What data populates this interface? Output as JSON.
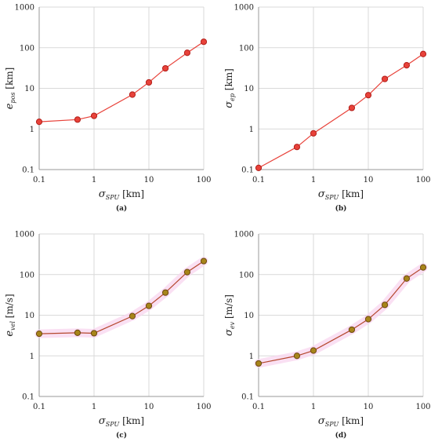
{
  "chart_data": [
    {
      "type": "line",
      "caption": "(a)",
      "xlabel": "σSPU [km]",
      "xlabel_main": "σ",
      "xlabel_sub": "SPU",
      "xlabel_unit": " [km]",
      "ylabel_main": "e",
      "ylabel_sub": "pos",
      "ylabel_unit": " [km]",
      "xscale": "log",
      "yscale": "log",
      "xlim": [
        0.1,
        100
      ],
      "ylim": [
        0.1,
        1000
      ],
      "x_ticks": [
        "0.1",
        "1",
        "10",
        "100"
      ],
      "y_ticks": [
        "0.1",
        "1",
        "10",
        "100",
        "1000"
      ],
      "grid": true,
      "x": [
        0.1,
        0.5,
        1,
        5,
        10,
        20,
        50,
        100
      ],
      "y": [
        1.5,
        1.7,
        2.1,
        7,
        14,
        31,
        75,
        140
      ],
      "line_color": "#e8423a",
      "marker_fill": "#e8423a",
      "marker_edge": "#b21f1a",
      "halo": false
    },
    {
      "type": "line",
      "caption": "(b)",
      "xlabel": "σSPU [km]",
      "xlabel_main": "σ",
      "xlabel_sub": "SPU",
      "xlabel_unit": " [km]",
      "ylabel_main": "σ",
      "ylabel_sub": "ep",
      "ylabel_unit": " [km]",
      "xscale": "log",
      "yscale": "log",
      "xlim": [
        0.1,
        100
      ],
      "ylim": [
        0.1,
        1000
      ],
      "x_ticks": [
        "0.1",
        "1",
        "10",
        "100"
      ],
      "y_ticks": [
        "0.1",
        "1",
        "10",
        "100",
        "1000"
      ],
      "grid": true,
      "x": [
        0.1,
        0.5,
        1,
        5,
        10,
        20,
        50,
        100
      ],
      "y": [
        0.11,
        0.36,
        0.78,
        3.3,
        6.8,
        17,
        37,
        70
      ],
      "line_color": "#e8423a",
      "marker_fill": "#e8423a",
      "marker_edge": "#b21f1a",
      "halo": false
    },
    {
      "type": "line",
      "caption": "(c)",
      "xlabel": "σSPU [km]",
      "xlabel_main": "σ",
      "xlabel_sub": "SPU",
      "xlabel_unit": " [km]",
      "ylabel_main": "e",
      "ylabel_sub": "vel",
      "ylabel_unit": " [m/s]",
      "xscale": "log",
      "yscale": "log",
      "xlim": [
        0.1,
        100
      ],
      "ylim": [
        0.1,
        1000
      ],
      "x_ticks": [
        "0.1",
        "1",
        "10",
        "100"
      ],
      "y_ticks": [
        "0.1",
        "1",
        "10",
        "100",
        "1000"
      ],
      "grid": true,
      "x": [
        0.1,
        0.5,
        1,
        5,
        10,
        20,
        50,
        100
      ],
      "y": [
        3.5,
        3.7,
        3.6,
        9.5,
        17,
        36,
        115,
        215
      ],
      "line_color": "#b5482e",
      "marker_fill": "#a8851a",
      "marker_edge": "#6b4a10",
      "halo": true,
      "halo_color": "#f9d6ef"
    },
    {
      "type": "line",
      "caption": "(d)",
      "xlabel": "σSPU [km]",
      "xlabel_main": "σ",
      "xlabel_sub": "SPU",
      "xlabel_unit": " [km]",
      "ylabel_main": "σ",
      "ylabel_sub": "ev",
      "ylabel_unit": " [m/s]",
      "xscale": "log",
      "yscale": "log",
      "xlim": [
        0.1,
        100
      ],
      "ylim": [
        0.1,
        1000
      ],
      "x_ticks": [
        "0.1",
        "1",
        "10",
        "100"
      ],
      "y_ticks": [
        "0.1",
        "1",
        "10",
        "100",
        "1000"
      ],
      "grid": true,
      "x": [
        0.1,
        0.5,
        1,
        5,
        10,
        20,
        50,
        100
      ],
      "y": [
        0.65,
        1.0,
        1.35,
        4.4,
        8,
        18,
        80,
        150
      ],
      "line_color": "#b5482e",
      "marker_fill": "#a8851a",
      "marker_edge": "#6b4a10",
      "halo": true,
      "halo_color": "#f9d6ef"
    }
  ]
}
